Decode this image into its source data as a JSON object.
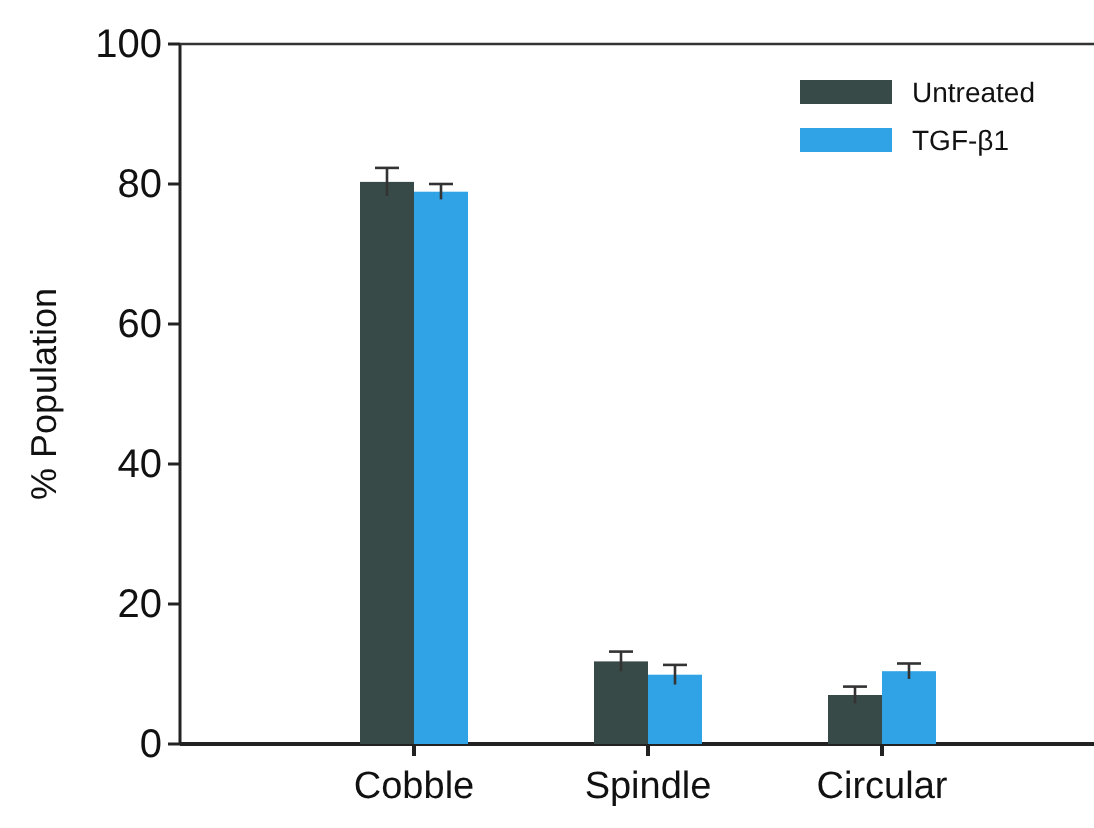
{
  "chart_data": {
    "type": "bar",
    "ylabel": "% Population",
    "categories": [
      "Cobble",
      "Spindle",
      "Circular"
    ],
    "series": [
      {
        "name": "Untreated",
        "color": "#384a48",
        "values": [
          80.3,
          11.8,
          7.0
        ],
        "errors": [
          2.0,
          1.4,
          1.2
        ]
      },
      {
        "name": "TGF-β1",
        "color": "#2fa3e6",
        "values": [
          78.9,
          9.9,
          10.4
        ],
        "errors": [
          1.1,
          1.4,
          1.1
        ]
      }
    ],
    "ylim": [
      0,
      100
    ],
    "yticks": [
      0,
      20,
      40,
      60,
      80,
      100
    ],
    "legend": "top right"
  }
}
